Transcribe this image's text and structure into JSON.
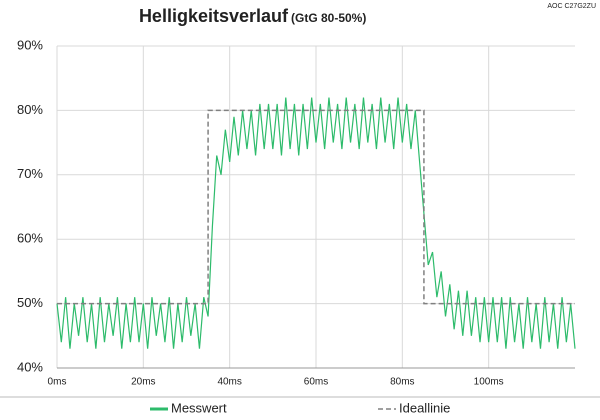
{
  "chart_data": {
    "type": "line",
    "title": "Helligkeitsverlauf",
    "subtitle": "(GtG 80-50%)",
    "annotation": "AOC C27G2ZU",
    "xlim": [
      0,
      120
    ],
    "xticks": [
      {
        "value": 0,
        "label": "0ms"
      },
      {
        "value": 20,
        "label": "20ms"
      },
      {
        "value": 40,
        "label": "40ms"
      },
      {
        "value": 60,
        "label": "60ms"
      },
      {
        "value": 80,
        "label": "80ms"
      },
      {
        "value": 100,
        "label": "100ms"
      }
    ],
    "ylim": [
      40,
      90
    ],
    "yticks": [
      {
        "value": 40,
        "label": "40%"
      },
      {
        "value": 50,
        "label": "50%"
      },
      {
        "value": 60,
        "label": "60%"
      },
      {
        "value": 70,
        "label": "70%"
      },
      {
        "value": 80,
        "label": "80%"
      },
      {
        "value": 90,
        "label": "90%"
      }
    ],
    "grid": true,
    "legend": "bottom",
    "series": [
      {
        "name": "Messwert",
        "color": "#2dbb6b",
        "dash": false,
        "x": [
          0,
          1,
          2,
          3,
          4,
          5,
          6,
          7,
          8,
          9,
          10,
          11,
          12,
          13,
          14,
          15,
          16,
          17,
          18,
          19,
          20,
          21,
          22,
          23,
          24,
          25,
          26,
          27,
          28,
          29,
          30,
          31,
          32,
          33,
          34,
          35,
          36,
          37,
          38,
          39,
          40,
          41,
          42,
          43,
          44,
          45,
          46,
          47,
          48,
          49,
          50,
          51,
          52,
          53,
          54,
          55,
          56,
          57,
          58,
          59,
          60,
          61,
          62,
          63,
          64,
          65,
          66,
          67,
          68,
          69,
          70,
          71,
          72,
          73,
          74,
          75,
          76,
          77,
          78,
          79,
          80,
          81,
          82,
          83,
          84,
          85,
          86,
          87,
          88,
          89,
          90,
          91,
          92,
          93,
          94,
          95,
          96,
          97,
          98,
          99,
          100,
          101,
          102,
          103,
          104,
          105,
          106,
          107,
          108,
          109,
          110,
          111,
          112,
          113,
          114,
          115,
          116,
          117,
          118,
          119,
          120
        ],
        "values": [
          50,
          44,
          51,
          43,
          50,
          45,
          51,
          44,
          50,
          43,
          51,
          44,
          50,
          45,
          51,
          43,
          50,
          44,
          51,
          44,
          50,
          43,
          51,
          45,
          50,
          44,
          51,
          43,
          50,
          44,
          51,
          45,
          50,
          43,
          51,
          48,
          62,
          73,
          70,
          77,
          72,
          79,
          73,
          80,
          74,
          80,
          73,
          81,
          74,
          81,
          74,
          81,
          73,
          82,
          74,
          81,
          73,
          81,
          74,
          82,
          75,
          81,
          74,
          82,
          75,
          81,
          74,
          82,
          75,
          81,
          74,
          82,
          75,
          81,
          74,
          82,
          75,
          81,
          74,
          82,
          75,
          81,
          74,
          80,
          72,
          64,
          56,
          58,
          51,
          55,
          48,
          53,
          46,
          52,
          45,
          52,
          45,
          51,
          44,
          51,
          44,
          51,
          44,
          51,
          43,
          51,
          44,
          50,
          43,
          51,
          44,
          50,
          43,
          51,
          44,
          50,
          43,
          51,
          44,
          50,
          43
        ]
      },
      {
        "name": "Ideallinie",
        "color": "#808080",
        "dash": true,
        "x": [
          0,
          35,
          35,
          85,
          85,
          120
        ],
        "values": [
          50,
          50,
          80,
          80,
          50,
          50
        ]
      }
    ]
  }
}
